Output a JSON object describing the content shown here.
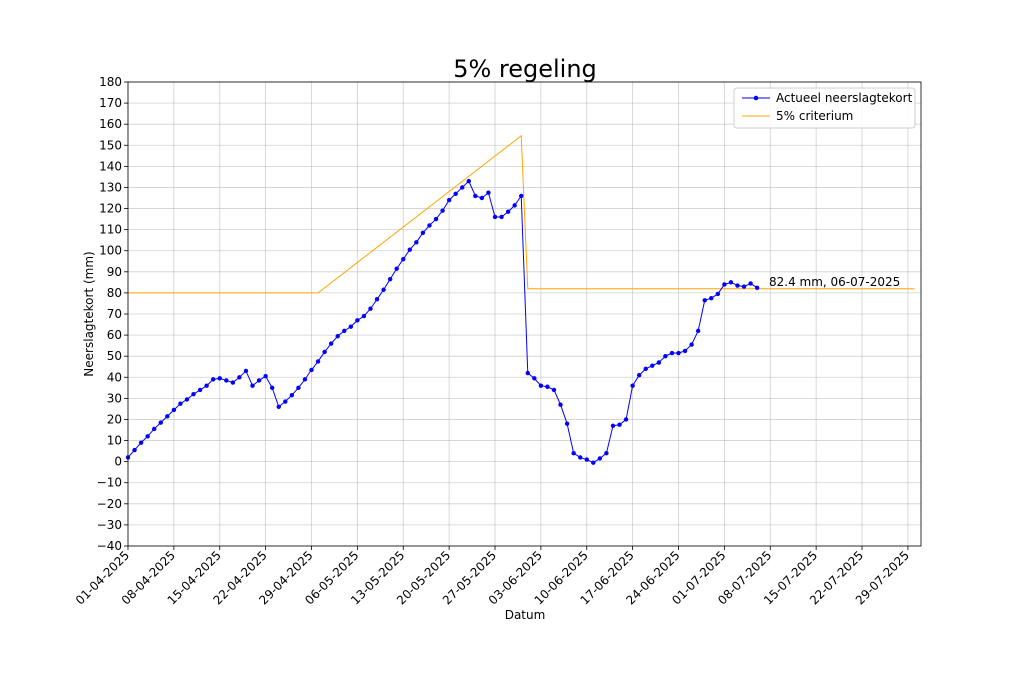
{
  "chart_data": {
    "type": "line",
    "title": "5% regeling",
    "xlabel": "Datum",
    "ylabel": "Neerslagtekort (mm)",
    "ylim": [
      -40,
      180
    ],
    "yticks": [
      "−40",
      "−30",
      "−20",
      "−10",
      "0",
      "10",
      "20",
      "30",
      "40",
      "50",
      "60",
      "70",
      "80",
      "90",
      "100",
      "110",
      "120",
      "130",
      "140",
      "150",
      "160",
      "170",
      "180"
    ],
    "xlim": [
      "2025-04-01",
      "2025-07-30"
    ],
    "xticks": [
      "01-04-2025",
      "08-04-2025",
      "15-04-2025",
      "22-04-2025",
      "29-04-2025",
      "06-05-2025",
      "13-05-2025",
      "20-05-2025",
      "27-05-2025",
      "03-06-2025",
      "10-06-2025",
      "17-06-2025",
      "24-06-2025",
      "01-07-2025",
      "08-07-2025",
      "15-07-2025",
      "22-07-2025",
      "29-07-2025"
    ],
    "grid": true,
    "legend_position": "top-right",
    "annotation": "82.4 mm, 06-07-2025",
    "colors": {
      "actual": "#0000ff",
      "criterion": "#ffa500"
    },
    "series": [
      {
        "name": "Actueel neerslagtekort",
        "style": "line-markers",
        "x": [
          "2025-04-01",
          "2025-04-02",
          "2025-04-03",
          "2025-04-04",
          "2025-04-05",
          "2025-04-06",
          "2025-04-07",
          "2025-04-08",
          "2025-04-09",
          "2025-04-10",
          "2025-04-11",
          "2025-04-12",
          "2025-04-13",
          "2025-04-14",
          "2025-04-15",
          "2025-04-16",
          "2025-04-17",
          "2025-04-18",
          "2025-04-19",
          "2025-04-20",
          "2025-04-21",
          "2025-04-22",
          "2025-04-23",
          "2025-04-24",
          "2025-04-25",
          "2025-04-26",
          "2025-04-27",
          "2025-04-28",
          "2025-04-29",
          "2025-04-30",
          "2025-05-01",
          "2025-05-02",
          "2025-05-03",
          "2025-05-04",
          "2025-05-05",
          "2025-05-06",
          "2025-05-07",
          "2025-05-08",
          "2025-05-09",
          "2025-05-10",
          "2025-05-11",
          "2025-05-12",
          "2025-05-13",
          "2025-05-14",
          "2025-05-15",
          "2025-05-16",
          "2025-05-17",
          "2025-05-18",
          "2025-05-19",
          "2025-05-20",
          "2025-05-21",
          "2025-05-22",
          "2025-05-23",
          "2025-05-24",
          "2025-05-25",
          "2025-05-26",
          "2025-05-27",
          "2025-05-28",
          "2025-05-29",
          "2025-05-30",
          "2025-05-31",
          "2025-06-01",
          "2025-06-02",
          "2025-06-03",
          "2025-06-04",
          "2025-06-05",
          "2025-06-06",
          "2025-06-07",
          "2025-06-08",
          "2025-06-09",
          "2025-06-10",
          "2025-06-11",
          "2025-06-12",
          "2025-06-13",
          "2025-06-14",
          "2025-06-15",
          "2025-06-16",
          "2025-06-17",
          "2025-06-18",
          "2025-06-19",
          "2025-06-20",
          "2025-06-21",
          "2025-06-22",
          "2025-06-23",
          "2025-06-24",
          "2025-06-25",
          "2025-06-26",
          "2025-06-27",
          "2025-06-28",
          "2025-06-29",
          "2025-06-30",
          "2025-07-01",
          "2025-07-02",
          "2025-07-03",
          "2025-07-04",
          "2025-07-05",
          "2025-07-06"
        ],
        "values": [
          2,
          5.5,
          9,
          12,
          15.5,
          18.5,
          21.5,
          24.5,
          27.5,
          29.5,
          32,
          34,
          36,
          39,
          39.5,
          38.5,
          37.5,
          40,
          43,
          36,
          38.5,
          40.5,
          35,
          26,
          28.5,
          31.5,
          35,
          39,
          43.5,
          47.5,
          52,
          56,
          59.5,
          62,
          64,
          67,
          69,
          72.5,
          77,
          81.5,
          86.5,
          91.5,
          96,
          100.5,
          104,
          108.5,
          112,
          115,
          119,
          124,
          127,
          130,
          133,
          126,
          125,
          127.5,
          116,
          116,
          118.5,
          121.5,
          126,
          42,
          39.5,
          36,
          35.5,
          34,
          27,
          18,
          4,
          2,
          1,
          -0.5,
          1.5,
          4,
          17,
          17.5,
          20,
          36,
          41,
          44,
          45.5,
          47,
          50,
          51.5,
          51.5,
          52.5,
          55.5,
          62,
          76.5,
          77.5,
          79.5,
          84,
          85,
          83.5,
          83,
          84.5,
          82.4
        ]
      },
      {
        "name": "5% criterium",
        "style": "line",
        "x": [
          "2025-04-01",
          "2025-04-30",
          "2025-05-31",
          "2025-06-01",
          "2025-07-30"
        ],
        "values": [
          80,
          80,
          154.5,
          82,
          82
        ]
      }
    ]
  }
}
